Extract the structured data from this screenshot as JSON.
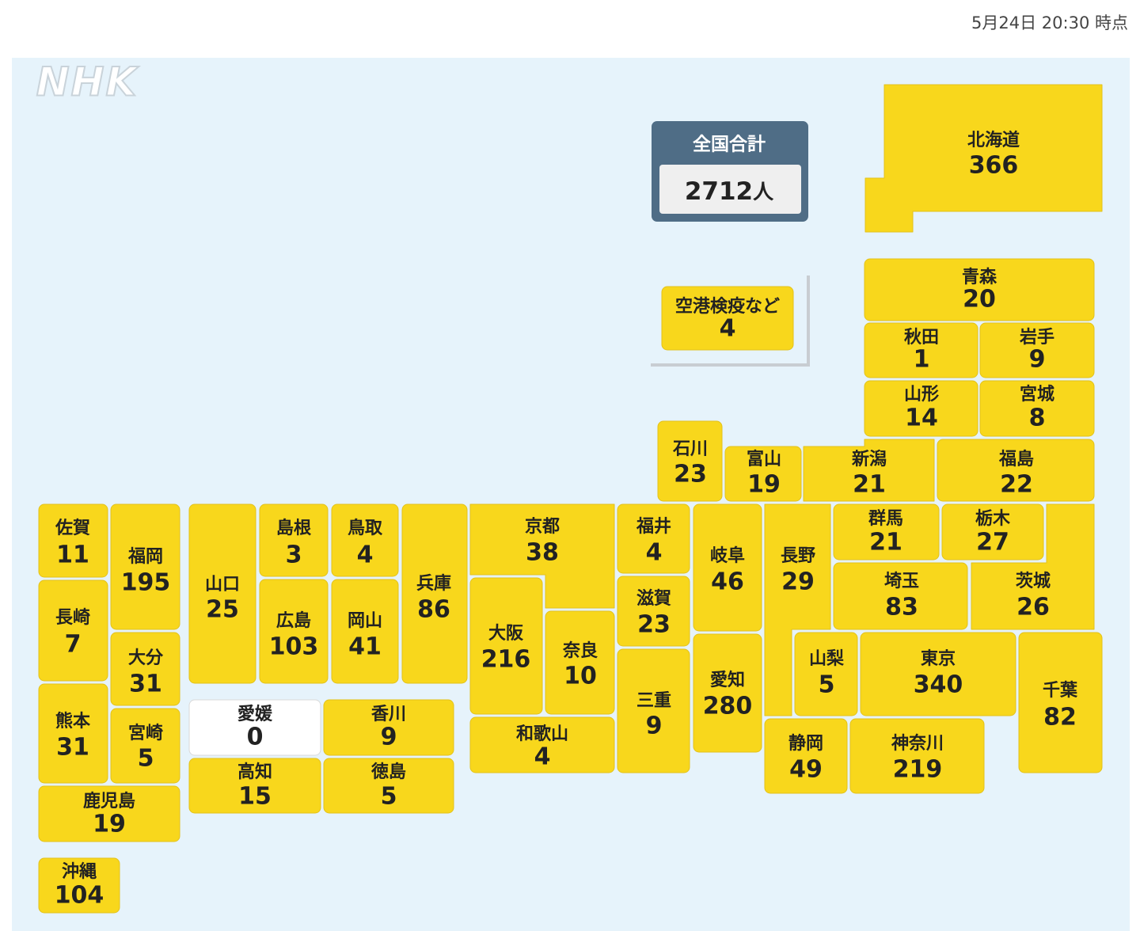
{
  "timestamp": "5月24日 20:30 時点",
  "logo": "NHK",
  "total": {
    "label": "全国合計",
    "value": 2712,
    "unit": "人"
  },
  "fill_color": "#f8d71c",
  "zero_fill_color": "#ffffff",
  "prefectures": [
    {
      "name": "北海道",
      "value": 366
    },
    {
      "name": "空港検疫など",
      "value": 4
    },
    {
      "name": "青森",
      "value": 20
    },
    {
      "name": "秋田",
      "value": 1
    },
    {
      "name": "岩手",
      "value": 9
    },
    {
      "name": "山形",
      "value": 14
    },
    {
      "name": "宮城",
      "value": 8
    },
    {
      "name": "石川",
      "value": 23
    },
    {
      "name": "富山",
      "value": 19
    },
    {
      "name": "新潟",
      "value": 21
    },
    {
      "name": "福島",
      "value": 22
    },
    {
      "name": "群馬",
      "value": 21
    },
    {
      "name": "栃木",
      "value": 27
    },
    {
      "name": "茨城",
      "value": 26
    },
    {
      "name": "埼玉",
      "value": 83
    },
    {
      "name": "長野",
      "value": 29
    },
    {
      "name": "岐阜",
      "value": 46
    },
    {
      "name": "愛知",
      "value": 280
    },
    {
      "name": "福井",
      "value": 4
    },
    {
      "name": "滋賀",
      "value": 23
    },
    {
      "name": "三重",
      "value": 9
    },
    {
      "name": "京都",
      "value": 38
    },
    {
      "name": "大阪",
      "value": 216
    },
    {
      "name": "奈良",
      "value": 10
    },
    {
      "name": "和歌山",
      "value": 4
    },
    {
      "name": "兵庫",
      "value": 86
    },
    {
      "name": "鳥取",
      "value": 4
    },
    {
      "name": "島根",
      "value": 3
    },
    {
      "name": "岡山",
      "value": 41
    },
    {
      "name": "広島",
      "value": 103
    },
    {
      "name": "山口",
      "value": 25
    },
    {
      "name": "福岡",
      "value": 195
    },
    {
      "name": "佐賀",
      "value": 11
    },
    {
      "name": "長崎",
      "value": 7
    },
    {
      "name": "大分",
      "value": 31
    },
    {
      "name": "熊本",
      "value": 31
    },
    {
      "name": "宮崎",
      "value": 5
    },
    {
      "name": "鹿児島",
      "value": 19
    },
    {
      "name": "沖縄",
      "value": 104
    },
    {
      "name": "愛媛",
      "value": 0
    },
    {
      "name": "香川",
      "value": 9
    },
    {
      "name": "高知",
      "value": 15
    },
    {
      "name": "徳島",
      "value": 5
    },
    {
      "name": "山梨",
      "value": 5
    },
    {
      "name": "東京",
      "value": 340
    },
    {
      "name": "千葉",
      "value": 82
    },
    {
      "name": "静岡",
      "value": 49
    },
    {
      "name": "神奈川",
      "value": 219
    }
  ]
}
